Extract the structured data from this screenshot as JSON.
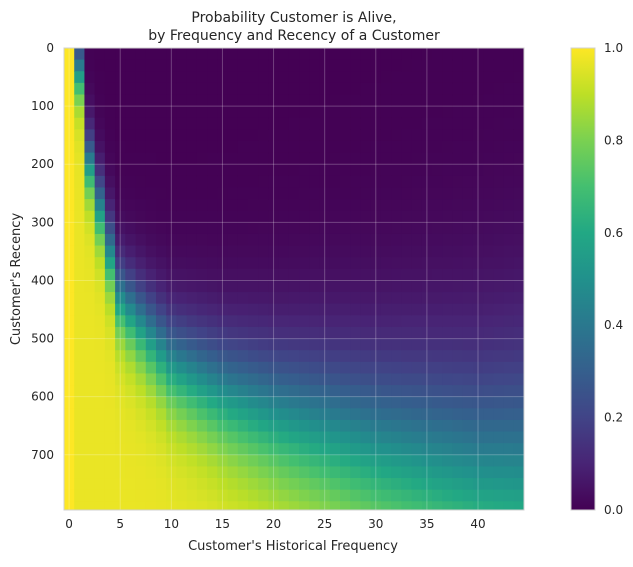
{
  "chart_data": {
    "type": "heatmap",
    "title_lines": [
      "Probability Customer is Alive,",
      "by Frequency and Recency of a Customer"
    ],
    "xlabel": "Customer's Historical Frequency",
    "ylabel": "Customer's Recency",
    "x_range": [
      0,
      44
    ],
    "y_range": [
      0,
      795
    ],
    "y_inverted": true,
    "x_ticks": [
      0,
      5,
      10,
      15,
      20,
      25,
      30,
      35,
      40
    ],
    "y_ticks": [
      0,
      100,
      200,
      300,
      400,
      500,
      600,
      700
    ],
    "x_tick_labels": [
      "0",
      "5",
      "10",
      "15",
      "20",
      "25",
      "30",
      "35",
      "40"
    ],
    "y_tick_labels": [
      "0",
      "100",
      "200",
      "300",
      "400",
      "500",
      "600",
      "700"
    ],
    "colorbar": {
      "colormap": "viridis",
      "range": [
        0.0,
        1.0
      ],
      "ticks": [
        0.0,
        0.2,
        0.4,
        0.6,
        0.8,
        1.0
      ],
      "tick_labels": [
        "0.0",
        "0.2",
        "0.4",
        "0.6",
        "0.8",
        "1.0"
      ]
    },
    "probability_boundary": {
      "description_points_frequency": [
        1,
        2,
        5,
        10,
        15,
        20,
        30,
        40,
        44
      ],
      "recency_at_p_0_5": [
        40,
        200,
        430,
        540,
        590,
        625,
        680,
        725,
        730
      ]
    },
    "grid": true,
    "colors": {
      "viridis_low": "#440154",
      "viridis_mid": "#21918c",
      "viridis_high": "#fde725",
      "grid": "#ffffff"
    }
  }
}
